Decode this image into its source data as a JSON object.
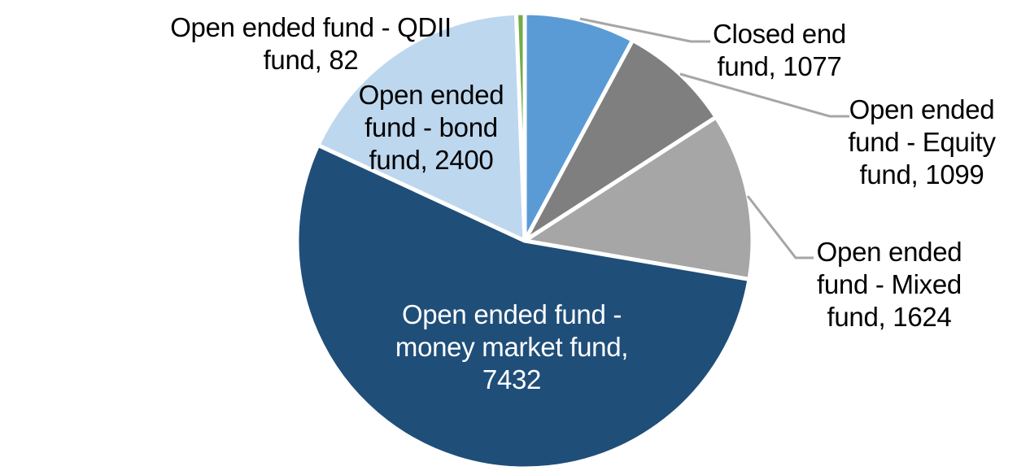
{
  "chart_data": {
    "type": "pie",
    "title": "",
    "categories": [
      "Closed end fund",
      "Open ended fund - Equity fund",
      "Open ended fund - Mixed fund",
      "Open ended fund - money market fund",
      "Open ended fund - bond fund",
      "Open ended fund - QDII fund"
    ],
    "values": [
      1077,
      1099,
      1624,
      7432,
      2400,
      82
    ],
    "colors": [
      "#5B9BD5",
      "#7F7F7F",
      "#A6A6A6",
      "#1F4E79",
      "#BDD7EE",
      "#70AD47"
    ],
    "start_angle_deg": 0,
    "direction": "clockwise",
    "legend_position": "none",
    "data_label_format": "category, value",
    "slice_border_color": "#FFFFFF",
    "leader_line_color": "#A6A6A6"
  },
  "labels": {
    "closed_end": {
      "lines": [
        "Closed end",
        "fund, 1077"
      ],
      "color": "#000000"
    },
    "equity": {
      "lines": [
        "Open ended",
        "fund - Equity",
        "fund, 1099"
      ],
      "color": "#000000"
    },
    "mixed": {
      "lines": [
        "Open ended",
        "fund - Mixed",
        "fund, 1624"
      ],
      "color": "#000000"
    },
    "money_market": {
      "lines": [
        "Open ended fund -",
        "money market fund,",
        "7432"
      ],
      "color": "#FFFFFF"
    },
    "bond": {
      "lines": [
        "Open ended",
        "fund - bond",
        "fund, 2400"
      ],
      "color": "#000000"
    },
    "qdii": {
      "lines": [
        "Open ended fund - QDII",
        "fund, 82"
      ],
      "color": "#000000"
    }
  }
}
